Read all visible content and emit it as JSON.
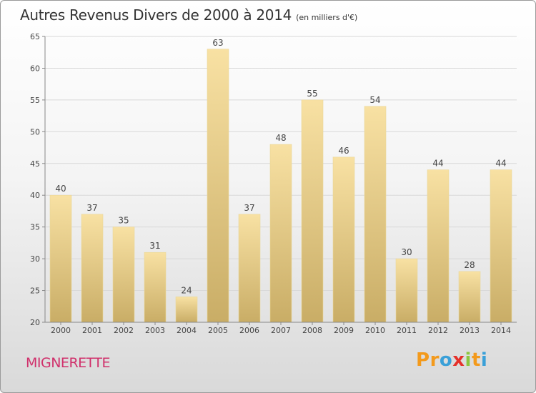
{
  "title": "Autres Revenus Divers de 2000 à 2014",
  "subtitle": "(en milliers d'€)",
  "commune": "MIGNERETTE",
  "logo": {
    "letters": [
      "P",
      "r",
      "o",
      "x",
      "i",
      "t",
      "i"
    ],
    "colors": [
      "#f39a1c",
      "#f39a1c",
      "#3aa0d8",
      "#e5302a",
      "#8cc63e",
      "#f39a1c",
      "#3aa0d8"
    ]
  },
  "colors": {
    "bar_top": "#f8e1a3",
    "bar_bottom": "#c9ad66",
    "title": "#333333",
    "commune": "#d0306b"
  },
  "chart_data": {
    "type": "bar",
    "title": "Autres Revenus Divers de 2000 à 2014",
    "subtitle": "(en milliers d'€)",
    "categories": [
      "2000",
      "2001",
      "2002",
      "2003",
      "2004",
      "2005",
      "2006",
      "2007",
      "2008",
      "2009",
      "2010",
      "2011",
      "2012",
      "2013",
      "2014"
    ],
    "values": [
      40,
      37,
      35,
      31,
      24,
      63,
      37,
      48,
      55,
      46,
      54,
      30,
      44,
      28,
      44
    ],
    "ylim": [
      20,
      65
    ],
    "yticks": [
      20,
      25,
      30,
      35,
      40,
      45,
      50,
      55,
      60,
      65
    ],
    "xlabel": "",
    "ylabel": "",
    "grid": true,
    "data_labels": true
  }
}
